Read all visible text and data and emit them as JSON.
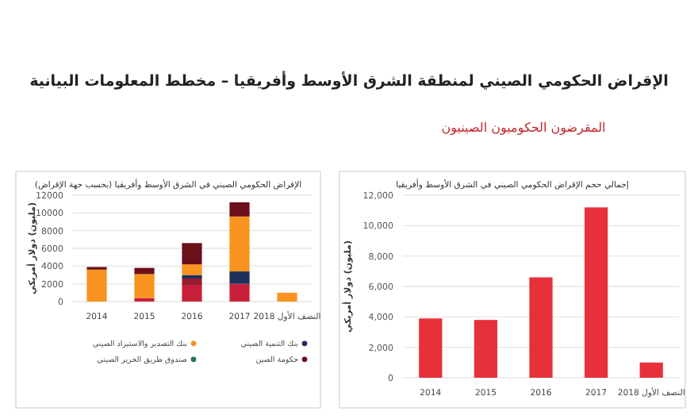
{
  "chart_data": [
    {
      "type": "bar",
      "title": "الإقراض الحكومي الصيني في الشرق الأوسط وأفريقيا (بحسب جهة الإقراض)",
      "annotations": [
        "الإقراض الحكومي الصيني لمنطقة الشرق الأوسط وأفريقيا – مخطط المعلومات البيانية",
        "المقرضون الحكوميون الصينيون"
      ],
      "ylabel": "(مليون) دولار أمريكي",
      "categories": [
        "2014",
        "2015",
        "2016",
        "2017",
        "النصف الأول 2018"
      ],
      "stacked": true,
      "series": [
        {
          "color": "#c8203a",
          "values": [
            null,
            400,
            1800,
            2000,
            null
          ]
        },
        {
          "color": "#9b1b30",
          "values": [
            null,
            null,
            800,
            null,
            null
          ]
        },
        {
          "name": "بنك التنمية الصيني",
          "color": "#1f2f5a",
          "values": [
            null,
            null,
            400,
            1400,
            null
          ]
        },
        {
          "name": "بنك التصدير والاستيراد الصيني",
          "color": "#f7931e",
          "values": [
            3600,
            2700,
            1200,
            6200,
            1000
          ]
        },
        {
          "name": "حكومة الصين",
          "color": "#6b0f1a",
          "values": [
            300,
            700,
            2400,
            1600,
            null
          ]
        },
        {
          "name": "صندوق طريق الحرير الصيني",
          "color": "#2a6f6a",
          "values": [
            null,
            null,
            null,
            null,
            null
          ]
        }
      ],
      "ylim": [
        0,
        12000
      ],
      "yticks": [
        0,
        2000,
        4000,
        6000,
        8000,
        10000,
        12000
      ],
      "grid": "y",
      "legend": "bottom"
    },
    {
      "type": "bar",
      "title": "إجمالي حجم الإقراض الحكومي الصيني في الشرق الأوسط وأفريقيا",
      "ylabel": "(مليون) دولار أمريكي",
      "categories": [
        "2014",
        "2015",
        "2016",
        "2017",
        "النصف الأول 2018"
      ],
      "values": [
        3900,
        3800,
        6600,
        11200,
        1000
      ],
      "color": "#e8303a",
      "ylim": [
        0,
        12000
      ],
      "yticks": [
        0,
        {
          "value": 2000,
          "label": "2,000"
        },
        {
          "value": 4000,
          "label": "4,000"
        },
        {
          "value": 6000,
          "label": "6,000"
        },
        {
          "value": 8000,
          "label": "8,000"
        },
        {
          "value": 10000,
          "label": "10,000"
        },
        {
          "value": 12000,
          "label": "12,000"
        }
      ],
      "grid": "y"
    }
  ]
}
